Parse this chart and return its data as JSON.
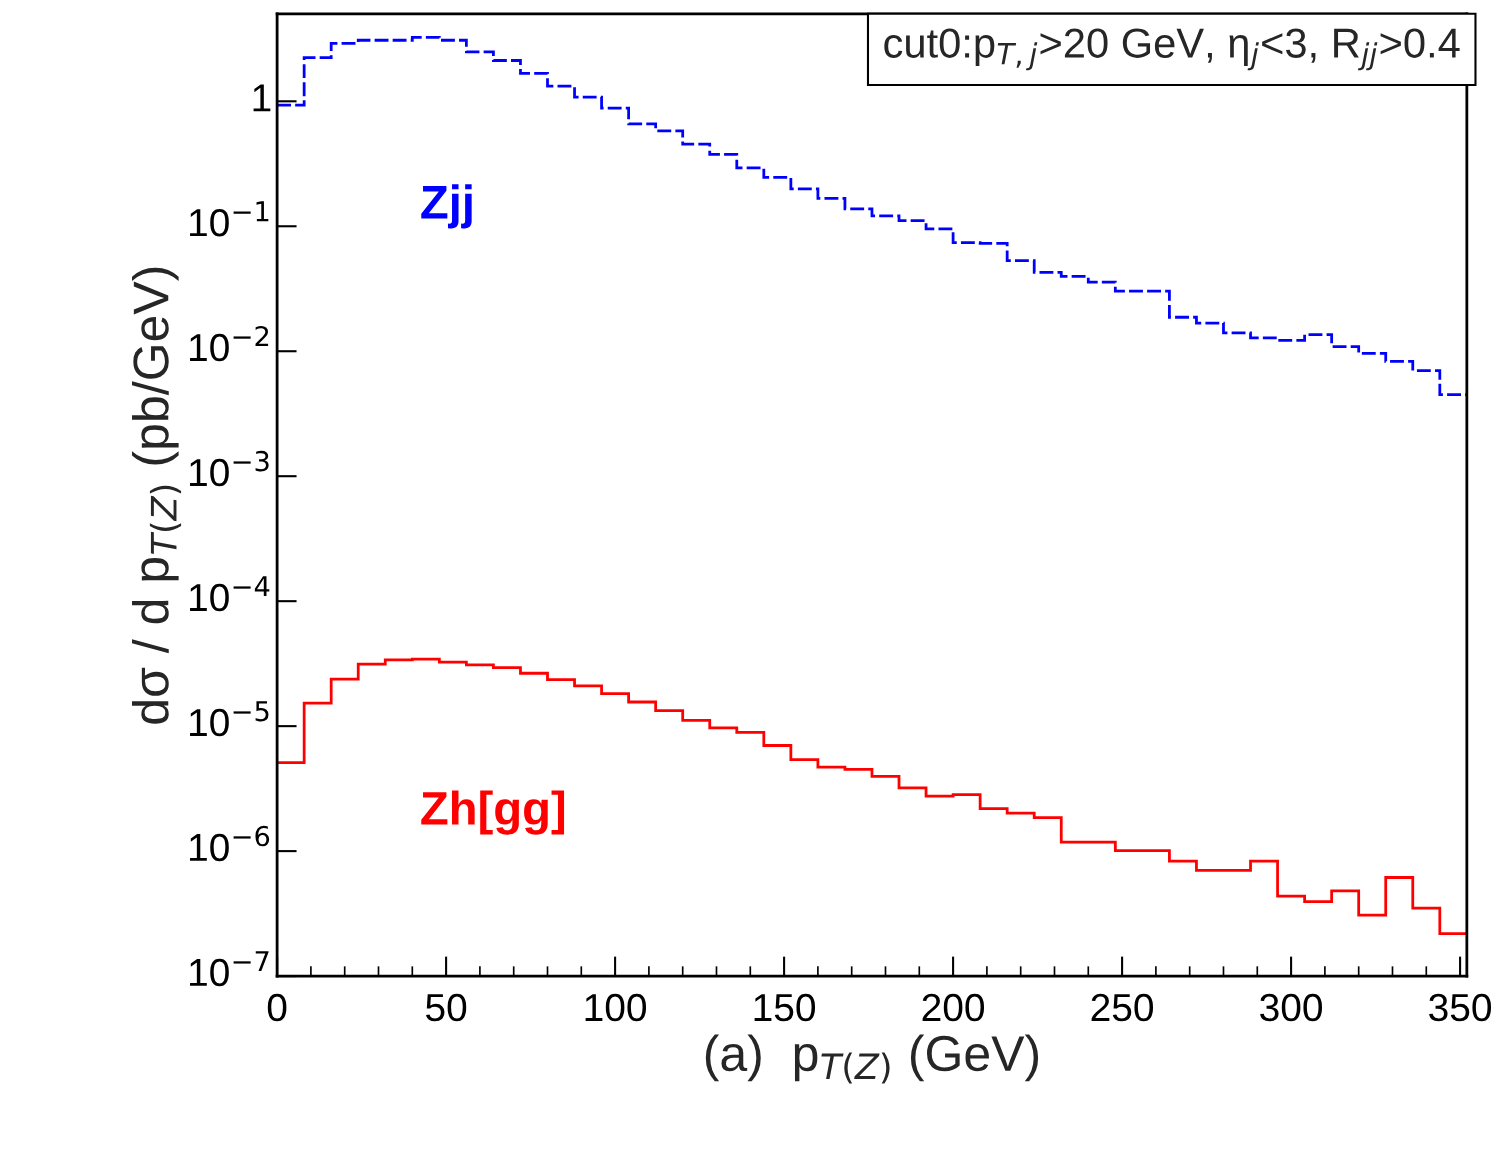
{
  "chart_data": {
    "type": "histogram",
    "xlabel": "(a)  p$_{T(Z)}$ (GeV)",
    "ylabel": "dσ / d p$_{T(Z)}$ (pb/GeV)",
    "annotations": [
      "cut0:p$_{T,j}$>20 GeV, η$_{j}$<3, R$_{jj}$>0.4"
    ],
    "bins": [
      0,
      8,
      16,
      24,
      32,
      40,
      48,
      56,
      64,
      72,
      80,
      88,
      96,
      104,
      112,
      120,
      128,
      136,
      144,
      152,
      160,
      168,
      176,
      184,
      192,
      200,
      208,
      216,
      224,
      232,
      240,
      248,
      256,
      264,
      272,
      280,
      288,
      296,
      304,
      312,
      320,
      328,
      336,
      344,
      352
    ],
    "series": [
      {
        "name": "Zjj",
        "color": "#0000ff",
        "line_style": "dashed",
        "values": [
          0.93,
          2.24,
          2.91,
          3.08,
          3.08,
          3.25,
          3.08,
          2.49,
          2.12,
          1.67,
          1.32,
          1.08,
          0.88,
          0.66,
          0.58,
          0.455,
          0.376,
          0.293,
          0.246,
          0.199,
          0.167,
          0.138,
          0.121,
          0.111,
          0.0953,
          0.0741,
          0.0731,
          0.053,
          0.0428,
          0.0398,
          0.0357,
          0.0303,
          0.0303,
          0.0187,
          0.0168,
          0.014,
          0.0128,
          0.0122,
          0.0136,
          0.0109,
          0.0096,
          0.0083,
          0.007,
          0.0045
        ]
      },
      {
        "name": "Zh[gg]",
        "color": "#ff0000",
        "line_style": "solid",
        "values": [
          5.1e-06,
          1.53e-05,
          2.38e-05,
          3.13e-05,
          3.39e-05,
          3.44e-05,
          3.25e-05,
          3.09e-05,
          2.94e-05,
          2.65e-05,
          2.36e-05,
          2.1e-05,
          1.82e-05,
          1.56e-05,
          1.33e-05,
          1.11e-05,
          9.7e-06,
          8.9e-06,
          7e-06,
          5.4e-06,
          4.7e-06,
          4.5e-06,
          3.97e-06,
          3.2e-06,
          2.75e-06,
          2.83e-06,
          2.19e-06,
          2.01e-06,
          1.85e-06,
          1.18e-06,
          1.18e-06,
          1.01e-06,
          1.01e-06,
          8.3e-07,
          7e-07,
          7e-07,
          8.3e-07,
          4.36e-07,
          3.95e-07,
          4.8e-07,
          3.07e-07,
          6.15e-07,
          3.5e-07,
          2.19e-07
        ]
      }
    ],
    "log": "y",
    "xlim": [
      0,
      352
    ],
    "xticks": [
      0,
      50,
      100,
      150,
      200,
      250,
      300,
      350
    ],
    "ylim": [
      1e-07,
      5
    ],
    "yticks": [
      {
        "value": 1e-07,
        "label": "10$^{−7}$"
      },
      {
        "value": 1e-06,
        "label": "10$^{−6}$"
      },
      {
        "value": 1e-05,
        "label": "10$^{−5}$"
      },
      {
        "value": 0.0001,
        "label": "10$^{−4}$"
      },
      {
        "value": 0.001,
        "label": "10$^{−3}$"
      },
      {
        "value": 0.01,
        "label": "10$^{−2}$"
      },
      {
        "value": 0.1,
        "label": "10$^{−1}$"
      },
      1
    ],
    "grid": false,
    "legend": false
  }
}
